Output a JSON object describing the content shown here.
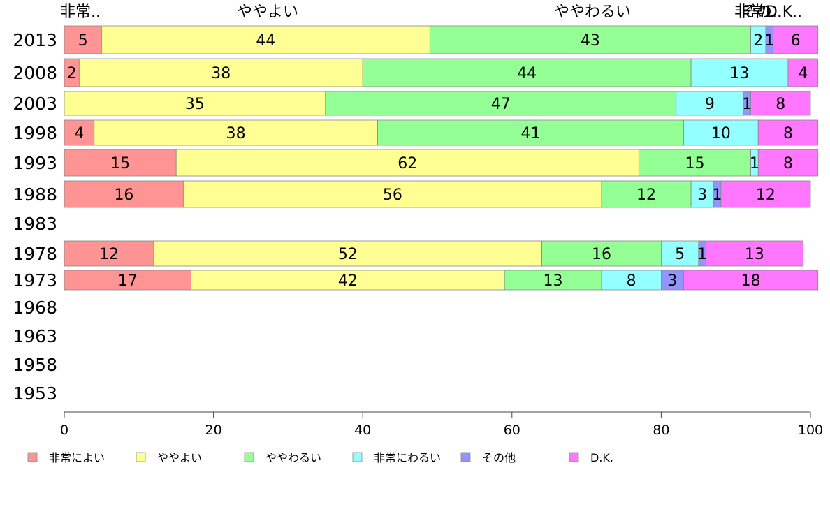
{
  "chart_data": {
    "type": "bar",
    "orientation": "horizontal",
    "stacked": true,
    "categories": [
      "2013",
      "2008",
      "2003",
      "1998",
      "1993",
      "1988",
      "1983",
      "1978",
      "1973",
      "1968",
      "1963",
      "1958",
      "1953"
    ],
    "series": [
      {
        "name": "非常によい",
        "color": "#ff9494",
        "values": [
          5,
          2,
          0,
          4,
          15,
          16,
          null,
          12,
          17,
          null,
          null,
          null,
          null
        ]
      },
      {
        "name": "ややよい",
        "color": "#ffff94",
        "values": [
          44,
          38,
          35,
          38,
          62,
          56,
          null,
          52,
          42,
          null,
          null,
          null,
          null
        ]
      },
      {
        "name": "ややわるい",
        "color": "#94ff94",
        "values": [
          43,
          44,
          47,
          41,
          15,
          12,
          null,
          16,
          13,
          null,
          null,
          null,
          null
        ]
      },
      {
        "name": "非常にわるい",
        "color": "#94ffff",
        "values": [
          2,
          13,
          9,
          10,
          1,
          3,
          null,
          5,
          8,
          null,
          null,
          null,
          null
        ]
      },
      {
        "name": "その他",
        "color": "#9494ff",
        "values": [
          1,
          0,
          1,
          0,
          0,
          1,
          null,
          1,
          3,
          null,
          null,
          null,
          null
        ]
      },
      {
        "name": "D.K.",
        "color": "#ff77ff",
        "values": [
          6,
          4,
          8,
          8,
          8,
          12,
          null,
          13,
          18,
          null,
          null,
          null,
          null
        ]
      }
    ],
    "top_labels": [
      "非常..",
      "ややよい",
      "ややわるい",
      "非常..",
      "その..",
      "D.K.."
    ],
    "xlim": [
      0,
      100
    ],
    "xticks": [
      "0",
      "20",
      "40",
      "60",
      "80",
      "100"
    ],
    "legend_position": "bottom",
    "grid": false
  }
}
